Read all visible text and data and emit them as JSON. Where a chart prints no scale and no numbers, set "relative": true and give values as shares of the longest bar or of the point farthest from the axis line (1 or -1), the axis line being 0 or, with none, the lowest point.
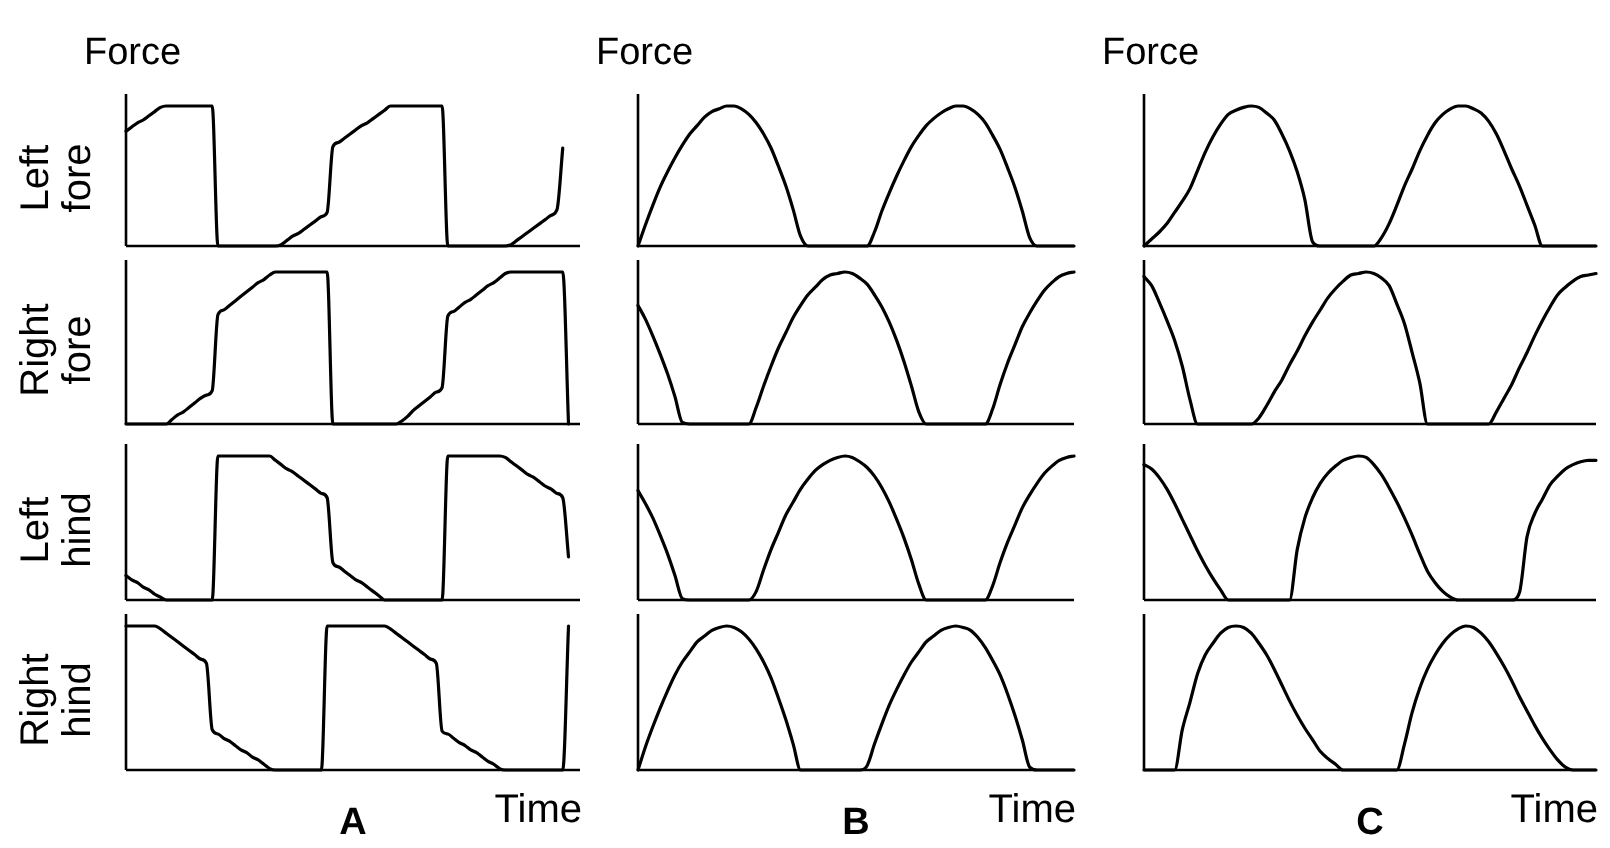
{
  "chart_data": [
    {
      "type": "line",
      "title": "Force",
      "ylabel": "Left fore",
      "relative": true,
      "tick_labels": false,
      "marker": "none",
      "color": "#000000",
      "categories": [
        null,
        null,
        null,
        null,
        null,
        null,
        null,
        null,
        null,
        null,
        null,
        null,
        null,
        null,
        null,
        null,
        null,
        null,
        null,
        null,
        null,
        null,
        null,
        null,
        null,
        null,
        null,
        null,
        null,
        null,
        null,
        null,
        null,
        null,
        null,
        null,
        null,
        null,
        null,
        null,
        null,
        null,
        null,
        null,
        null,
        null,
        null,
        null,
        null,
        null,
        null,
        null,
        null,
        null,
        null,
        null,
        null,
        null,
        null,
        null,
        null,
        null,
        null,
        null,
        null,
        null,
        null,
        null,
        null,
        null,
        null,
        null,
        null,
        null,
        null,
        null,
        null,
        null,
        null,
        null
      ],
      "values": [
        0.82,
        0.85,
        0.88,
        0.9,
        0.93,
        0.96,
        0.99,
        1,
        1,
        1,
        1,
        1,
        1,
        1,
        1,
        1,
        0,
        0,
        0,
        0,
        0,
        0,
        0,
        0,
        0,
        0,
        0,
        0.01,
        0.04,
        0.07,
        0.09,
        0.12,
        0.15,
        0.18,
        0.21,
        0.24,
        0.71,
        0.74,
        0.77,
        0.8,
        0.83,
        0.86,
        0.88,
        0.91,
        0.94,
        0.97,
        1,
        1,
        1,
        1,
        1,
        1,
        1,
        1,
        1,
        1,
        0,
        0,
        0,
        0,
        0,
        0,
        0,
        0,
        0,
        0,
        0,
        0.01,
        0.04,
        0.07,
        0.1,
        0.13,
        0.16,
        0.19,
        0.22,
        0.26,
        0.7,
        null,
        null,
        null
      ]
    },
    {
      "type": "line",
      "ylabel": "Right fore",
      "relative": true,
      "tick_labels": false,
      "marker": "none",
      "color": "#000000",
      "categories": [
        null,
        null,
        null,
        null,
        null,
        null,
        null,
        null,
        null,
        null,
        null,
        null,
        null,
        null,
        null,
        null,
        null,
        null,
        null,
        null,
        null,
        null,
        null,
        null,
        null,
        null,
        null,
        null,
        null,
        null,
        null,
        null,
        null,
        null,
        null,
        null,
        null,
        null,
        null,
        null,
        null,
        null,
        null,
        null,
        null,
        null,
        null,
        null,
        null,
        null,
        null,
        null,
        null,
        null,
        null,
        null,
        null,
        null,
        null,
        null,
        null,
        null,
        null,
        null,
        null,
        null,
        null,
        null,
        null,
        null,
        null,
        null,
        null,
        null,
        null,
        null,
        null,
        null,
        null,
        null
      ],
      "values": [
        0,
        0,
        0,
        0,
        0,
        0,
        0,
        0,
        0.03,
        0.06,
        0.08,
        0.11,
        0.14,
        0.17,
        0.19,
        0.22,
        0.72,
        0.75,
        0.78,
        0.81,
        0.84,
        0.87,
        0.9,
        0.93,
        0.95,
        0.98,
        1,
        1,
        1,
        1,
        1,
        1,
        1,
        1,
        1,
        1,
        0,
        0,
        0,
        0,
        0,
        0,
        0,
        0,
        0,
        0,
        0,
        0,
        0.02,
        0.05,
        0.09,
        0.12,
        0.15,
        0.18,
        0.21,
        0.24,
        0.71,
        0.74,
        0.77,
        0.8,
        0.82,
        0.85,
        0.88,
        0.91,
        0.93,
        0.96,
        0.99,
        1,
        1,
        1,
        1,
        1,
        1,
        1,
        1,
        1,
        1,
        0,
        null,
        null
      ]
    },
    {
      "type": "line",
      "ylabel": "Left hind",
      "relative": true,
      "tick_labels": false,
      "marker": "none",
      "color": "#000000",
      "categories": [
        null,
        null,
        null,
        null,
        null,
        null,
        null,
        null,
        null,
        null,
        null,
        null,
        null,
        null,
        null,
        null,
        null,
        null,
        null,
        null,
        null,
        null,
        null,
        null,
        null,
        null,
        null,
        null,
        null,
        null,
        null,
        null,
        null,
        null,
        null,
        null,
        null,
        null,
        null,
        null,
        null,
        null,
        null,
        null,
        null,
        null,
        null,
        null,
        null,
        null,
        null,
        null,
        null,
        null,
        null,
        null,
        null,
        null,
        null,
        null,
        null,
        null,
        null,
        null,
        null,
        null,
        null,
        null,
        null,
        null,
        null,
        null,
        null,
        null,
        null,
        null,
        null,
        null,
        null,
        null
      ],
      "values": [
        0.17,
        0.14,
        0.12,
        0.09,
        0.07,
        0.04,
        0.02,
        0,
        0,
        0,
        0,
        0,
        0,
        0,
        0,
        0,
        1,
        1,
        1,
        1,
        1,
        1,
        1,
        1,
        1,
        1,
        0.97,
        0.94,
        0.91,
        0.89,
        0.86,
        0.83,
        0.8,
        0.77,
        0.74,
        0.71,
        0.26,
        0.23,
        0.2,
        0.17,
        0.14,
        0.12,
        0.09,
        0.06,
        0.03,
        0,
        0,
        0,
        0,
        0,
        0,
        0,
        0,
        0,
        0,
        0,
        1,
        1,
        1,
        1,
        1,
        1,
        1,
        1,
        1,
        1,
        0.99,
        0.96,
        0.93,
        0.9,
        0.87,
        0.85,
        0.82,
        0.79,
        0.77,
        0.74,
        0.71,
        0.3,
        null,
        null
      ]
    },
    {
      "type": "line",
      "ylabel": "Right hind",
      "xlabel": "Time",
      "annotations": [
        "A"
      ],
      "relative": true,
      "tick_labels": false,
      "marker": "none",
      "color": "#000000",
      "categories": [
        null,
        null,
        null,
        null,
        null,
        null,
        null,
        null,
        null,
        null,
        null,
        null,
        null,
        null,
        null,
        null,
        null,
        null,
        null,
        null,
        null,
        null,
        null,
        null,
        null,
        null,
        null,
        null,
        null,
        null,
        null,
        null,
        null,
        null,
        null,
        null,
        null,
        null,
        null,
        null,
        null,
        null,
        null,
        null,
        null,
        null,
        null,
        null,
        null,
        null,
        null,
        null,
        null,
        null,
        null,
        null,
        null,
        null,
        null,
        null,
        null,
        null,
        null,
        null,
        null,
        null,
        null,
        null,
        null,
        null,
        null,
        null,
        null,
        null,
        null,
        null,
        null,
        null,
        null,
        null
      ],
      "values": [
        1,
        1,
        1,
        1,
        1,
        1,
        0.98,
        0.95,
        0.92,
        0.89,
        0.86,
        0.83,
        0.8,
        0.77,
        0.74,
        0.28,
        0.25,
        0.22,
        0.2,
        0.17,
        0.14,
        0.12,
        0.09,
        0.07,
        0.04,
        0.01,
        0,
        0,
        0,
        0,
        0,
        0,
        0,
        0,
        0,
        1,
        1,
        1,
        1,
        1,
        1,
        1,
        1,
        1,
        1,
        1,
        0.98,
        0.95,
        0.92,
        0.89,
        0.86,
        0.83,
        0.8,
        0.77,
        0.74,
        0.27,
        0.25,
        0.22,
        0.19,
        0.17,
        0.14,
        0.12,
        0.09,
        0.06,
        0.04,
        0.01,
        0,
        0,
        0,
        0,
        0,
        0,
        0,
        0,
        0,
        0,
        0,
        1,
        null,
        null
      ]
    },
    {
      "type": "line",
      "title": "Force",
      "relative": true,
      "tick_labels": false,
      "marker": "none",
      "color": "#000000",
      "categories": [
        null,
        null,
        null,
        null,
        null,
        null,
        null,
        null,
        null,
        null,
        null,
        null,
        null,
        null,
        null,
        null,
        null,
        null,
        null,
        null,
        null,
        null,
        null,
        null,
        null,
        null,
        null,
        null,
        null,
        null,
        null,
        null,
        null,
        null,
        null,
        null,
        null,
        null,
        null,
        null,
        null,
        null,
        null,
        null,
        null,
        null,
        null,
        null,
        null,
        null,
        null,
        null,
        null,
        null,
        null,
        null,
        null,
        null,
        null,
        null
      ],
      "values": [
        0,
        0.15,
        0.29,
        0.42,
        0.53,
        0.63,
        0.72,
        0.8,
        0.86,
        0.92,
        0.96,
        0.98,
        1,
        1,
        0.98,
        0.94,
        0.88,
        0.8,
        0.7,
        0.57,
        0.43,
        0.26,
        0.07,
        0,
        0,
        0,
        0,
        0,
        0,
        0,
        0,
        0,
        0.1,
        0.25,
        0.38,
        0.5,
        0.61,
        0.71,
        0.79,
        0.86,
        0.91,
        0.95,
        0.98,
        1,
        1,
        0.98,
        0.94,
        0.88,
        0.79,
        0.69,
        0.56,
        0.42,
        0.25,
        0.06,
        0,
        0,
        0,
        0,
        0,
        0
      ]
    },
    {
      "type": "line",
      "relative": true,
      "tick_labels": false,
      "marker": "none",
      "color": "#000000",
      "categories": [
        null,
        null,
        null,
        null,
        null,
        null,
        null,
        null,
        null,
        null,
        null,
        null,
        null,
        null,
        null,
        null,
        null,
        null,
        null,
        null,
        null,
        null,
        null,
        null,
        null,
        null,
        null,
        null,
        null,
        null,
        null,
        null,
        null,
        null,
        null,
        null,
        null,
        null,
        null,
        null,
        null,
        null,
        null,
        null,
        null,
        null,
        null,
        null,
        null,
        null,
        null,
        null,
        null,
        null,
        null,
        null,
        null,
        null,
        null,
        null
      ],
      "values": [
        0.78,
        0.69,
        0.58,
        0.46,
        0.33,
        0.18,
        0.01,
        0,
        0,
        0,
        0,
        0,
        0,
        0,
        0,
        0,
        0.11,
        0.25,
        0.38,
        0.5,
        0.6,
        0.7,
        0.78,
        0.85,
        0.9,
        0.95,
        0.98,
        0.99,
        1,
        0.99,
        0.96,
        0.92,
        0.85,
        0.77,
        0.67,
        0.55,
        0.41,
        0.25,
        0.08,
        0,
        0,
        0,
        0,
        0,
        0,
        0,
        0,
        0,
        0.1,
        0.26,
        0.4,
        0.52,
        0.64,
        0.73,
        0.81,
        0.88,
        0.93,
        0.97,
        0.99,
        1
      ]
    },
    {
      "type": "line",
      "relative": true,
      "tick_labels": false,
      "marker": "none",
      "color": "#000000",
      "categories": [
        null,
        null,
        null,
        null,
        null,
        null,
        null,
        null,
        null,
        null,
        null,
        null,
        null,
        null,
        null,
        null,
        null,
        null,
        null,
        null,
        null,
        null,
        null,
        null,
        null,
        null,
        null,
        null,
        null,
        null,
        null,
        null,
        null,
        null,
        null,
        null,
        null,
        null,
        null,
        null,
        null,
        null,
        null,
        null,
        null,
        null,
        null,
        null,
        null,
        null,
        null,
        null,
        null,
        null,
        null,
        null,
        null,
        null,
        null,
        null
      ],
      "values": [
        0.76,
        0.67,
        0.57,
        0.45,
        0.32,
        0.17,
        0.01,
        0,
        0,
        0,
        0,
        0,
        0,
        0,
        0,
        0,
        0.06,
        0.21,
        0.35,
        0.47,
        0.59,
        0.68,
        0.77,
        0.84,
        0.9,
        0.94,
        0.97,
        0.99,
        1,
        0.99,
        0.96,
        0.92,
        0.86,
        0.78,
        0.68,
        0.56,
        0.43,
        0.28,
        0.11,
        0,
        0,
        0,
        0,
        0,
        0,
        0,
        0,
        0,
        0.1,
        0.26,
        0.4,
        0.52,
        0.64,
        0.73,
        0.81,
        0.88,
        0.93,
        0.97,
        0.99,
        1
      ]
    },
    {
      "type": "line",
      "xlabel": "Time",
      "annotations": [
        "B"
      ],
      "relative": true,
      "tick_labels": false,
      "marker": "none",
      "color": "#000000",
      "categories": [
        null,
        null,
        null,
        null,
        null,
        null,
        null,
        null,
        null,
        null,
        null,
        null,
        null,
        null,
        null,
        null,
        null,
        null,
        null,
        null,
        null,
        null,
        null,
        null,
        null,
        null,
        null,
        null,
        null,
        null,
        null,
        null,
        null,
        null,
        null,
        null,
        null,
        null,
        null,
        null,
        null,
        null,
        null,
        null,
        null,
        null,
        null,
        null,
        null,
        null,
        null,
        null,
        null,
        null,
        null,
        null,
        null,
        null,
        null,
        null
      ],
      "values": [
        0,
        0.16,
        0.3,
        0.43,
        0.55,
        0.66,
        0.75,
        0.82,
        0.89,
        0.93,
        0.97,
        0.99,
        1,
        0.99,
        0.96,
        0.91,
        0.84,
        0.75,
        0.64,
        0.5,
        0.35,
        0.18,
        0,
        0,
        0,
        0,
        0,
        0,
        0,
        0,
        0,
        0.03,
        0.18,
        0.32,
        0.45,
        0.56,
        0.66,
        0.75,
        0.82,
        0.89,
        0.93,
        0.97,
        0.99,
        1,
        0.99,
        0.97,
        0.92,
        0.85,
        0.76,
        0.66,
        0.53,
        0.38,
        0.21,
        0.02,
        0,
        0,
        0,
        0,
        0,
        0
      ]
    },
    {
      "type": "line",
      "title": "Force",
      "relative": true,
      "tick_labels": false,
      "marker": "none",
      "color": "#000000",
      "categories": [
        null,
        null,
        null,
        null,
        null,
        null,
        null,
        null,
        null,
        null,
        null,
        null,
        null,
        null,
        null,
        null,
        null,
        null,
        null,
        null,
        null,
        null,
        null,
        null,
        null,
        null,
        null,
        null,
        null,
        null,
        null,
        null,
        null,
        null,
        null,
        null,
        null,
        null,
        null,
        null,
        null,
        null,
        null,
        null,
        null,
        null,
        null,
        null,
        null,
        null,
        null,
        null,
        null,
        null,
        null,
        null,
        null,
        null,
        null,
        null
      ],
      "values": [
        0,
        0.05,
        0.1,
        0.16,
        0.24,
        0.32,
        0.41,
        0.54,
        0.67,
        0.78,
        0.87,
        0.94,
        0.97,
        0.99,
        1,
        0.99,
        0.95,
        0.9,
        0.8,
        0.68,
        0.53,
        0.33,
        0.03,
        0,
        0,
        0,
        0,
        0,
        0,
        0,
        0,
        0.06,
        0.16,
        0.29,
        0.43,
        0.55,
        0.68,
        0.79,
        0.88,
        0.94,
        0.98,
        1,
        1,
        0.98,
        0.95,
        0.89,
        0.8,
        0.68,
        0.55,
        0.43,
        0.29,
        0.15,
        0,
        0,
        0,
        0,
        0,
        0,
        0,
        0
      ]
    },
    {
      "type": "line",
      "relative": true,
      "tick_labels": false,
      "marker": "none",
      "color": "#000000",
      "categories": [
        null,
        null,
        null,
        null,
        null,
        null,
        null,
        null,
        null,
        null,
        null,
        null,
        null,
        null,
        null,
        null,
        null,
        null,
        null,
        null,
        null,
        null,
        null,
        null,
        null,
        null,
        null,
        null,
        null,
        null,
        null,
        null,
        null,
        null,
        null,
        null,
        null,
        null,
        null,
        null,
        null,
        null,
        null,
        null,
        null,
        null,
        null,
        null,
        null,
        null,
        null,
        null,
        null,
        null,
        null,
        null,
        null,
        null,
        null,
        null
      ],
      "values": [
        0.97,
        0.91,
        0.8,
        0.68,
        0.55,
        0.38,
        0.16,
        0,
        0,
        0,
        0,
        0,
        0,
        0,
        0,
        0.04,
        0.12,
        0.21,
        0.29,
        0.39,
        0.48,
        0.58,
        0.67,
        0.75,
        0.83,
        0.89,
        0.94,
        0.98,
        0.99,
        1,
        0.99,
        0.96,
        0.91,
        0.79,
        0.66,
        0.47,
        0.27,
        0,
        0,
        0,
        0,
        0,
        0,
        0,
        0,
        0,
        0.08,
        0.17,
        0.26,
        0.37,
        0.47,
        0.58,
        0.68,
        0.77,
        0.85,
        0.9,
        0.94,
        0.97,
        0.98,
        0.99
      ]
    },
    {
      "type": "line",
      "relative": true,
      "tick_labels": false,
      "marker": "none",
      "color": "#000000",
      "categories": [
        null,
        null,
        null,
        null,
        null,
        null,
        null,
        null,
        null,
        null,
        null,
        null,
        null,
        null,
        null,
        null,
        null,
        null,
        null,
        null,
        null,
        null,
        null,
        null,
        null,
        null,
        null,
        null,
        null,
        null,
        null,
        null,
        null,
        null,
        null,
        null,
        null,
        null,
        null,
        null,
        null,
        null,
        null,
        null,
        null,
        null,
        null,
        null,
        null,
        null,
        null,
        null,
        null,
        null,
        null,
        null,
        null,
        null,
        null,
        null
      ],
      "values": [
        0.94,
        0.91,
        0.85,
        0.77,
        0.67,
        0.56,
        0.45,
        0.34,
        0.24,
        0.15,
        0.07,
        0,
        0,
        0,
        0,
        0,
        0,
        0,
        0,
        0,
        0.35,
        0.57,
        0.71,
        0.81,
        0.88,
        0.93,
        0.97,
        0.99,
        1,
        0.99,
        0.94,
        0.87,
        0.78,
        0.68,
        0.57,
        0.45,
        0.32,
        0.2,
        0.12,
        0.06,
        0.02,
        0,
        0,
        0,
        0,
        0,
        0,
        0,
        0,
        0.05,
        0.44,
        0.6,
        0.7,
        0.8,
        0.86,
        0.91,
        0.94,
        0.96,
        0.97,
        0.97
      ]
    },
    {
      "type": "line",
      "xlabel": "Time",
      "annotations": [
        "C"
      ],
      "relative": true,
      "tick_labels": false,
      "marker": "none",
      "color": "#000000",
      "categories": [
        null,
        null,
        null,
        null,
        null,
        null,
        null,
        null,
        null,
        null,
        null,
        null,
        null,
        null,
        null,
        null,
        null,
        null,
        null,
        null,
        null,
        null,
        null,
        null,
        null,
        null,
        null,
        null,
        null,
        null,
        null,
        null,
        null,
        null,
        null,
        null,
        null,
        null,
        null,
        null,
        null,
        null,
        null,
        null,
        null,
        null,
        null,
        null,
        null,
        null,
        null,
        null,
        null,
        null,
        null,
        null,
        null,
        null,
        null,
        null
      ],
      "values": [
        0,
        0,
        0,
        0,
        0,
        0.28,
        0.47,
        0.67,
        0.8,
        0.88,
        0.95,
        0.99,
        1,
        0.99,
        0.95,
        0.88,
        0.8,
        0.7,
        0.59,
        0.48,
        0.38,
        0.29,
        0.21,
        0.13,
        0.08,
        0.04,
        0,
        0,
        0,
        0,
        0,
        0,
        0,
        0,
        0.18,
        0.4,
        0.57,
        0.7,
        0.8,
        0.88,
        0.94,
        0.98,
        1,
        0.99,
        0.95,
        0.89,
        0.81,
        0.72,
        0.62,
        0.51,
        0.41,
        0.31,
        0.22,
        0.14,
        0.07,
        0.02,
        0,
        0,
        0,
        0
      ]
    }
  ]
}
